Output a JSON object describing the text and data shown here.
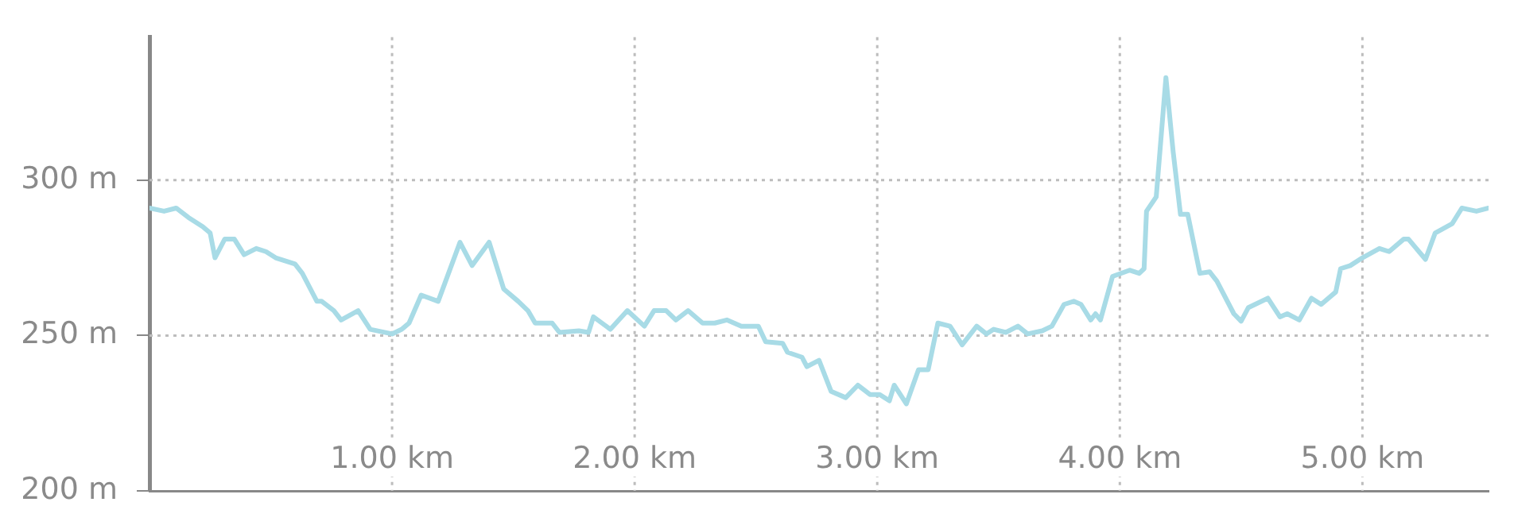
{
  "chart_data": {
    "type": "line",
    "grid": true,
    "marker": "none",
    "line_style": "solid",
    "legend": false,
    "xlim": [
      0,
      5.52
    ],
    "ylim": [
      200,
      346
    ],
    "xticks": [
      {
        "value": 1,
        "label": "1.00 km"
      },
      {
        "value": 2,
        "label": "2.00 km"
      },
      {
        "value": 3,
        "label": "3.00 km"
      },
      {
        "value": 4,
        "label": "4.00 km"
      },
      {
        "value": 5,
        "label": "5.00 km"
      }
    ],
    "yticks": [
      {
        "value": 200,
        "label": "200 m"
      },
      {
        "value": 250,
        "label": "250 m"
      },
      {
        "value": 300,
        "label": "300 m"
      }
    ],
    "series": [
      {
        "color": "#a8dbe6",
        "x": [
          0,
          0.06,
          0.11,
          0.16,
          0.22,
          0.25,
          0.27,
          0.31,
          0.35,
          0.39,
          0.44,
          0.48,
          0.52,
          0.6,
          0.63,
          0.69,
          0.71,
          0.76,
          0.79,
          0.86,
          0.91,
          1.0,
          1.04,
          1.07,
          1.12,
          1.19,
          1.28,
          1.33,
          1.4,
          1.46,
          1.52,
          1.56,
          1.59,
          1.66,
          1.69,
          1.77,
          1.81,
          1.83,
          1.9,
          1.97,
          2.04,
          2.08,
          2.13,
          2.17,
          2.22,
          2.28,
          2.33,
          2.38,
          2.44,
          2.51,
          2.54,
          2.61,
          2.63,
          2.69,
          2.71,
          2.76,
          2.81,
          2.87,
          2.92,
          2.97,
          3.01,
          3.05,
          3.07,
          3.12,
          3.17,
          3.21,
          3.25,
          3.3,
          3.35,
          3.41,
          3.45,
          3.48,
          3.53,
          3.58,
          3.62,
          3.68,
          3.72,
          3.77,
          3.81,
          3.84,
          3.88,
          3.9,
          3.92,
          3.97,
          4.04,
          4.08,
          4.1,
          4.11,
          4.15,
          4.19,
          4.22,
          4.25,
          4.28,
          4.33,
          4.37,
          4.4,
          4.47,
          4.5,
          4.53,
          4.61,
          4.66,
          4.69,
          4.74,
          4.79,
          4.83,
          4.89,
          4.91,
          4.95,
          5.0,
          5.07,
          5.11,
          5.17,
          5.19,
          5.26,
          5.3,
          5.37,
          5.41,
          5.47,
          5.52
        ],
        "values": [
          291,
          290,
          291,
          288,
          285,
          283,
          275,
          281,
          281,
          276,
          278,
          277,
          275,
          273,
          270,
          261,
          261,
          258,
          255,
          258,
          252,
          250.5,
          252,
          254,
          263,
          261,
          280,
          272.5,
          280,
          265,
          261,
          258,
          254,
          254,
          251,
          251.5,
          251,
          256,
          252,
          258,
          253,
          258,
          258,
          255,
          258,
          254,
          254,
          255,
          253,
          253,
          248,
          247.5,
          244.6,
          243,
          240,
          242,
          232,
          230,
          234,
          231,
          231,
          229,
          234,
          228,
          239,
          239,
          254,
          253,
          247,
          253,
          250.5,
          252,
          251,
          253,
          250.5,
          251.5,
          253,
          260,
          261,
          260,
          255,
          257,
          255,
          269,
          271,
          270,
          271.5,
          290,
          294.6,
          333,
          309,
          289,
          289,
          270,
          270.5,
          267.5,
          257,
          254.6,
          259,
          262,
          256,
          257,
          255,
          262,
          260,
          264,
          271.5,
          272.5,
          275,
          278,
          277,
          281,
          281,
          274.5,
          283,
          286,
          291,
          290,
          291
        ]
      }
    ]
  }
}
